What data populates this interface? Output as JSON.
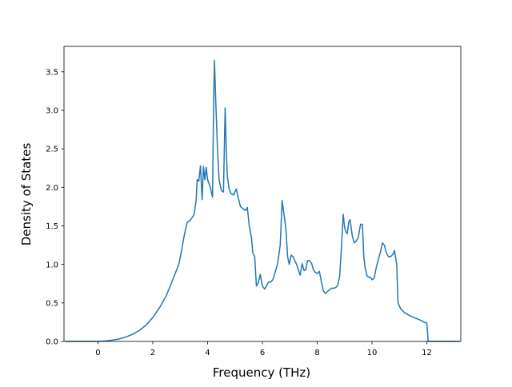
{
  "chart_data": {
    "type": "line",
    "title": "",
    "xlabel": "Frequency (THz)",
    "ylabel": "Density of States",
    "xlim": [
      -1.24,
      13.24
    ],
    "ylim": [
      0,
      3.83
    ],
    "xticks": [
      0,
      2,
      4,
      6,
      8,
      10,
      12
    ],
    "xtick_labels": [
      "0",
      "2",
      "4",
      "6",
      "8",
      "10",
      "12"
    ],
    "yticks": [
      0.0,
      0.5,
      1.0,
      1.5,
      2.0,
      2.5,
      3.0,
      3.5
    ],
    "ytick_labels": [
      "0.0",
      "0.5",
      "1.0",
      "1.5",
      "2.0",
      "2.5",
      "3.0",
      "3.5"
    ],
    "grid": false,
    "line_color": "#1f77b4",
    "series": [
      {
        "x": [
          -1.2,
          0.0,
          0.25,
          0.5,
          0.75,
          1.0,
          1.25,
          1.5,
          1.75,
          2.0,
          2.25,
          2.5,
          2.75,
          2.95,
          3.05,
          3.15,
          3.25,
          3.35,
          3.42,
          3.5,
          3.58,
          3.62,
          3.68,
          3.74,
          3.8,
          3.85,
          3.9,
          3.95,
          4.0,
          4.05,
          4.1,
          4.18,
          4.22,
          4.25,
          4.3,
          4.36,
          4.42,
          4.5,
          4.58,
          4.64,
          4.68,
          4.72,
          4.78,
          4.85,
          4.95,
          5.05,
          5.12,
          5.2,
          5.3,
          5.38,
          5.45,
          5.52,
          5.6,
          5.65,
          5.72,
          5.78,
          5.85,
          5.92,
          6.0,
          6.08,
          6.15,
          6.22,
          6.3,
          6.38,
          6.45,
          6.55,
          6.65,
          6.72,
          6.8,
          6.86,
          6.92,
          6.98,
          7.05,
          7.12,
          7.18,
          7.25,
          7.32,
          7.38,
          7.45,
          7.52,
          7.58,
          7.65,
          7.72,
          7.8,
          7.86,
          7.92,
          8.0,
          8.08,
          8.15,
          8.22,
          8.3,
          8.38,
          8.45,
          8.52,
          8.6,
          8.68,
          8.75,
          8.82,
          8.88,
          8.95,
          9.0,
          9.05,
          9.1,
          9.15,
          9.2,
          9.28,
          9.35,
          9.42,
          9.5,
          9.58,
          9.65,
          9.7,
          9.75,
          9.82,
          9.9,
          9.95,
          10.0,
          10.08,
          10.15,
          10.22,
          10.3,
          10.38,
          10.45,
          10.52,
          10.6,
          10.68,
          10.76,
          10.82,
          10.9,
          10.95,
          11.05,
          11.2,
          11.4,
          11.6,
          11.8,
          11.9,
          12.0,
          12.05,
          12.2,
          13.2
        ],
        "values": [
          0.0,
          0.0,
          0.005,
          0.015,
          0.03,
          0.055,
          0.09,
          0.14,
          0.21,
          0.31,
          0.44,
          0.6,
          0.82,
          1.0,
          1.18,
          1.38,
          1.54,
          1.57,
          1.6,
          1.64,
          1.82,
          2.1,
          2.08,
          2.28,
          1.84,
          2.27,
          2.1,
          2.26,
          2.1,
          2.05,
          2.0,
          1.87,
          3.1,
          3.65,
          3.1,
          2.5,
          2.1,
          1.96,
          1.94,
          3.03,
          2.5,
          2.15,
          1.99,
          1.92,
          1.9,
          1.98,
          1.86,
          1.75,
          1.72,
          1.7,
          1.74,
          1.5,
          1.35,
          1.15,
          1.1,
          0.72,
          0.76,
          0.87,
          0.72,
          0.68,
          0.72,
          0.77,
          0.77,
          0.8,
          0.88,
          1.0,
          1.25,
          1.83,
          1.62,
          1.45,
          1.1,
          1.0,
          1.12,
          1.1,
          1.05,
          1.0,
          0.92,
          0.86,
          1.01,
          0.92,
          0.93,
          1.05,
          1.05,
          1.01,
          0.93,
          0.9,
          0.88,
          0.91,
          0.78,
          0.66,
          0.62,
          0.65,
          0.67,
          0.69,
          0.69,
          0.7,
          0.73,
          0.85,
          1.2,
          1.65,
          1.48,
          1.42,
          1.4,
          1.55,
          1.58,
          1.37,
          1.28,
          1.3,
          1.35,
          1.52,
          1.52,
          1.1,
          0.95,
          0.85,
          0.83,
          0.83,
          0.8,
          0.82,
          0.95,
          1.05,
          1.15,
          1.28,
          1.25,
          1.15,
          1.1,
          1.1,
          1.13,
          1.18,
          1.0,
          0.5,
          0.42,
          0.37,
          0.33,
          0.3,
          0.27,
          0.25,
          0.24,
          0.0,
          0.0,
          0.0
        ]
      }
    ]
  }
}
